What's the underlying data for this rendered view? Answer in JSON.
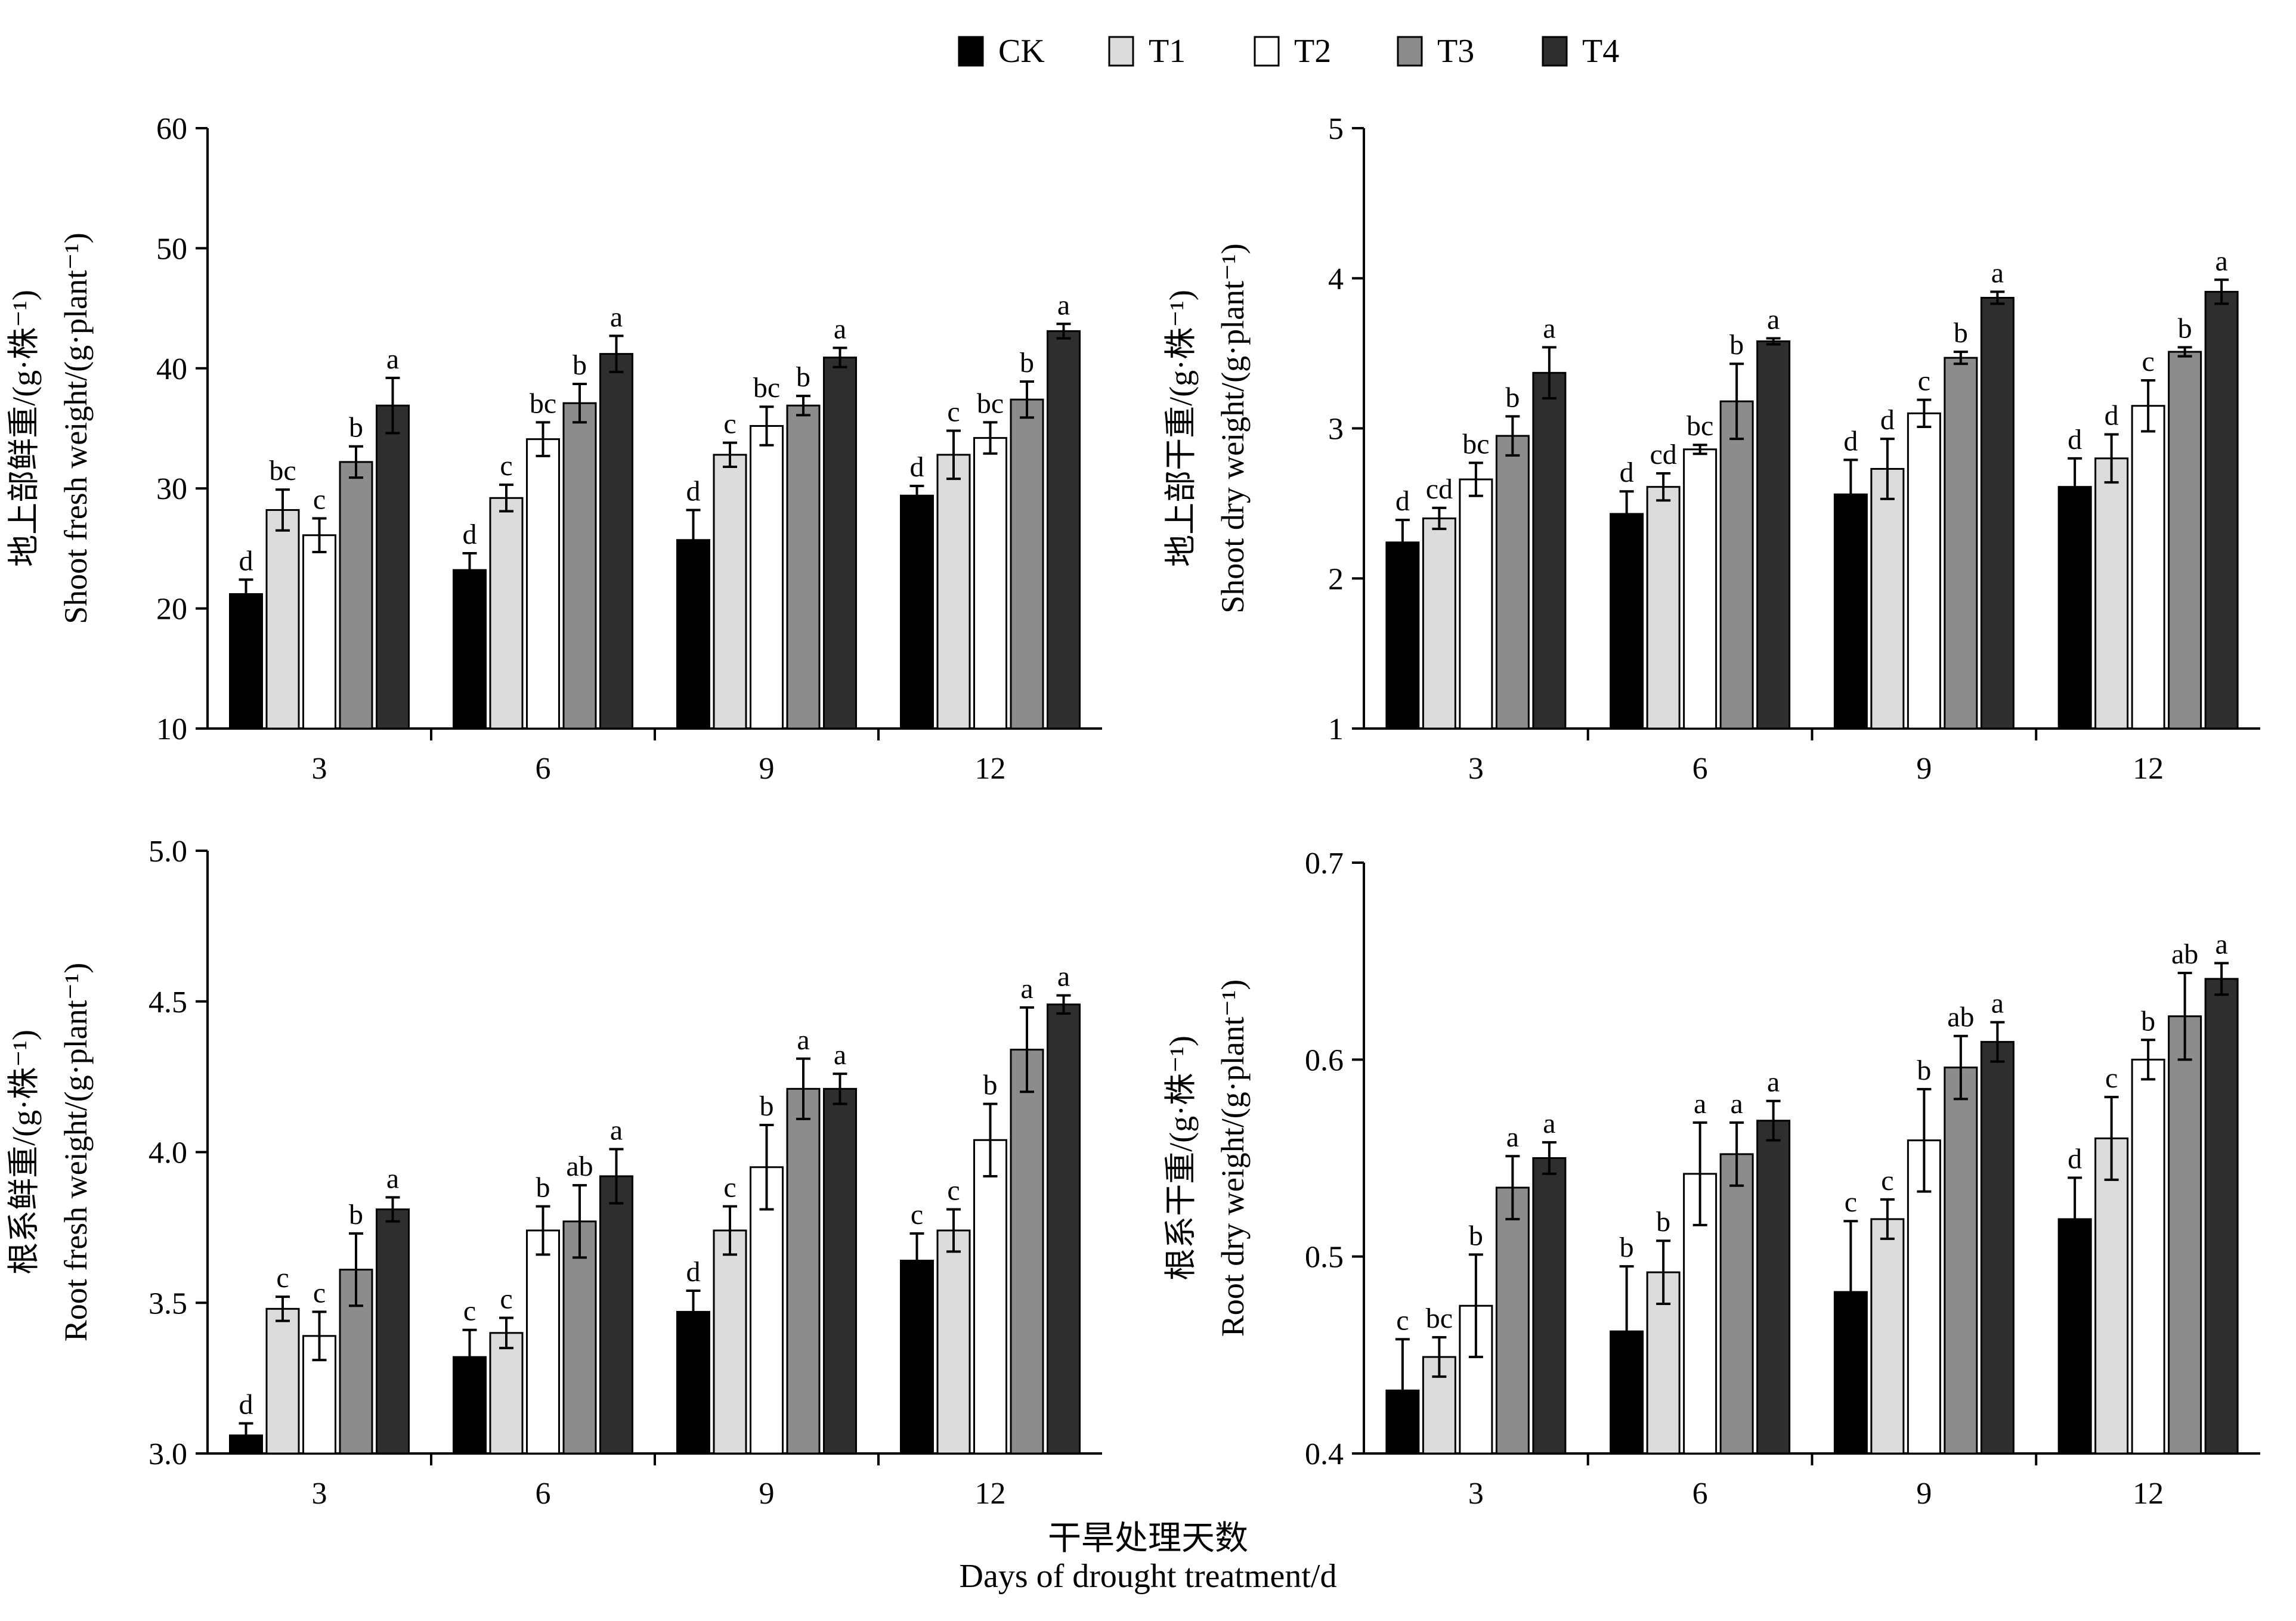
{
  "legend": {
    "items": [
      {
        "label": "CK",
        "color": "#000000"
      },
      {
        "label": "T1",
        "color": "#dcdcdc"
      },
      {
        "label": "T2",
        "color": "#ffffff"
      },
      {
        "label": "T3",
        "color": "#8c8c8c"
      },
      {
        "label": "T4",
        "color": "#2e2e2e"
      }
    ]
  },
  "x_title": {
    "zh": "干旱处理天数",
    "en": "Days of drought treatment/d"
  },
  "chart_data": [
    {
      "type": "bar",
      "ylabel_zh": "地上部鲜重/(g·株⁻¹)",
      "ylabel_en": "Shoot fresh weight/(g·plant⁻¹)",
      "categories": [
        "3",
        "6",
        "9",
        "12"
      ],
      "ylim": [
        10,
        60
      ],
      "yticks": [
        "10",
        "20",
        "30",
        "40",
        "50",
        "60"
      ],
      "series": [
        {
          "name": "CK",
          "values": [
            21.2,
            23.2,
            25.7,
            29.4
          ],
          "errors": [
            1.2,
            1.4,
            2.5,
            0.8
          ],
          "letters": [
            "d",
            "d",
            "d",
            "d"
          ]
        },
        {
          "name": "T1",
          "values": [
            28.2,
            29.2,
            32.8,
            32.8
          ],
          "errors": [
            1.7,
            1.1,
            1.0,
            2.0
          ],
          "letters": [
            "bc",
            "c",
            "c",
            "c"
          ]
        },
        {
          "name": "T2",
          "values": [
            26.1,
            34.1,
            35.2,
            34.2
          ],
          "errors": [
            1.4,
            1.4,
            1.6,
            1.3
          ],
          "letters": [
            "c",
            "bc",
            "bc",
            "bc"
          ]
        },
        {
          "name": "T3",
          "values": [
            32.2,
            37.1,
            36.9,
            37.4
          ],
          "errors": [
            1.3,
            1.6,
            0.8,
            1.5
          ],
          "letters": [
            "b",
            "b",
            "b",
            "b"
          ]
        },
        {
          "name": "T4",
          "values": [
            36.9,
            41.2,
            40.9,
            43.1
          ],
          "errors": [
            2.3,
            1.5,
            0.8,
            0.6
          ],
          "letters": [
            "a",
            "a",
            "a",
            "a"
          ]
        }
      ]
    },
    {
      "type": "bar",
      "ylabel_zh": "地上部干重/(g·株⁻¹)",
      "ylabel_en": "Shoot dry weight/(g·plant⁻¹)",
      "categories": [
        "3",
        "6",
        "9",
        "12"
      ],
      "ylim": [
        1,
        5
      ],
      "yticks": [
        "1",
        "2",
        "3",
        "4",
        "5"
      ],
      "series": [
        {
          "name": "CK",
          "values": [
            2.24,
            2.43,
            2.56,
            2.61
          ],
          "errors": [
            0.15,
            0.15,
            0.23,
            0.19
          ],
          "letters": [
            "d",
            "d",
            "d",
            "d"
          ]
        },
        {
          "name": "T1",
          "values": [
            2.4,
            2.61,
            2.73,
            2.8
          ],
          "errors": [
            0.07,
            0.09,
            0.2,
            0.16
          ],
          "letters": [
            "cd",
            "cd",
            "d",
            "d"
          ]
        },
        {
          "name": "T2",
          "values": [
            2.66,
            2.86,
            3.1,
            3.15
          ],
          "errors": [
            0.11,
            0.03,
            0.09,
            0.17
          ],
          "letters": [
            "bc",
            "bc",
            "c",
            "c"
          ]
        },
        {
          "name": "T3",
          "values": [
            2.95,
            3.18,
            3.47,
            3.51
          ],
          "errors": [
            0.13,
            0.25,
            0.04,
            0.03
          ],
          "letters": [
            "b",
            "b",
            "b",
            "b"
          ]
        },
        {
          "name": "T4",
          "values": [
            3.37,
            3.58,
            3.87,
            3.91
          ],
          "errors": [
            0.17,
            0.02,
            0.04,
            0.08
          ],
          "letters": [
            "a",
            "a",
            "a",
            "a"
          ]
        }
      ]
    },
    {
      "type": "bar",
      "ylabel_zh": "根系鲜重/(g·株⁻¹)",
      "ylabel_en": "Root fresh weight/(g·plant⁻¹)",
      "categories": [
        "3",
        "6",
        "9",
        "12"
      ],
      "ylim": [
        3.0,
        5.0
      ],
      "yticks": [
        "3.0",
        "3.5",
        "4.0",
        "4.5",
        "5.0"
      ],
      "series": [
        {
          "name": "CK",
          "values": [
            3.06,
            3.32,
            3.47,
            3.64
          ],
          "errors": [
            0.04,
            0.09,
            0.07,
            0.09
          ],
          "letters": [
            "d",
            "c",
            "d",
            "c"
          ]
        },
        {
          "name": "T1",
          "values": [
            3.48,
            3.4,
            3.74,
            3.74
          ],
          "errors": [
            0.04,
            0.05,
            0.08,
            0.07
          ],
          "letters": [
            "c",
            "c",
            "c",
            "c"
          ]
        },
        {
          "name": "T2",
          "values": [
            3.39,
            3.74,
            3.95,
            4.04
          ],
          "errors": [
            0.08,
            0.08,
            0.14,
            0.12
          ],
          "letters": [
            "c",
            "b",
            "b",
            "b"
          ]
        },
        {
          "name": "T3",
          "values": [
            3.61,
            3.77,
            4.21,
            4.34
          ],
          "errors": [
            0.12,
            0.12,
            0.1,
            0.14
          ],
          "letters": [
            "b",
            "ab",
            "a",
            "a"
          ]
        },
        {
          "name": "T4",
          "values": [
            3.81,
            3.92,
            4.21,
            4.49
          ],
          "errors": [
            0.04,
            0.09,
            0.05,
            0.03
          ],
          "letters": [
            "a",
            "a",
            "a",
            "a"
          ]
        }
      ]
    },
    {
      "type": "bar",
      "ylabel_zh": "根系干重/(g·株⁻¹)",
      "ylabel_en": "Root dry weight/(g·plant⁻¹)",
      "categories": [
        "3",
        "6",
        "9",
        "12"
      ],
      "ylim": [
        0.4,
        0.7
      ],
      "yticks": [
        "0.4",
        "0.5",
        "0.6",
        "0.7"
      ],
      "series": [
        {
          "name": "CK",
          "values": [
            0.432,
            0.462,
            0.482,
            0.519
          ],
          "errors": [
            0.026,
            0.033,
            0.036,
            0.021
          ],
          "letters": [
            "c",
            "b",
            "c",
            "d"
          ]
        },
        {
          "name": "T1",
          "values": [
            0.449,
            0.492,
            0.519,
            0.56
          ],
          "errors": [
            0.01,
            0.016,
            0.01,
            0.021
          ],
          "letters": [
            "bc",
            "b",
            "c",
            "c"
          ]
        },
        {
          "name": "T2",
          "values": [
            0.475,
            0.542,
            0.559,
            0.6
          ],
          "errors": [
            0.026,
            0.026,
            0.026,
            0.01
          ],
          "letters": [
            "b",
            "a",
            "b",
            "b"
          ]
        },
        {
          "name": "T3",
          "values": [
            0.535,
            0.552,
            0.596,
            0.622
          ],
          "errors": [
            0.016,
            0.016,
            0.016,
            0.022
          ],
          "letters": [
            "a",
            "a",
            "ab",
            "ab"
          ]
        },
        {
          "name": "T4",
          "values": [
            0.55,
            0.569,
            0.609,
            0.641
          ],
          "errors": [
            0.008,
            0.01,
            0.01,
            0.008
          ],
          "letters": [
            "a",
            "a",
            "a",
            "a"
          ]
        }
      ]
    }
  ]
}
